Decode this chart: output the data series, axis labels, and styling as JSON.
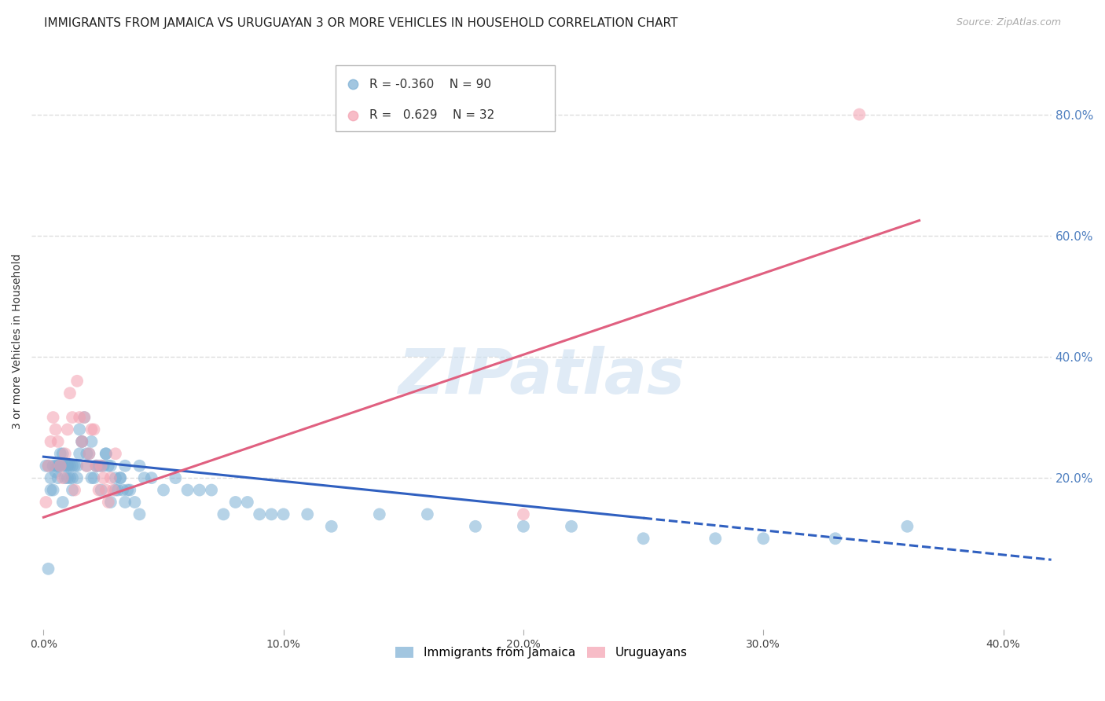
{
  "title": "IMMIGRANTS FROM JAMAICA VS URUGUAYAN 3 OR MORE VEHICLES IN HOUSEHOLD CORRELATION CHART",
  "source": "Source: ZipAtlas.com",
  "ylabel": "3 or more Vehicles in Household",
  "watermark": "ZIPatlas",
  "right_ytick_labels": [
    "80.0%",
    "60.0%",
    "40.0%",
    "20.0%"
  ],
  "right_yticks": [
    0.8,
    0.6,
    0.4,
    0.2
  ],
  "xlim": [
    -0.005,
    0.42
  ],
  "ylim": [
    -0.05,
    0.9
  ],
  "blue_R": -0.36,
  "blue_N": 90,
  "pink_R": 0.629,
  "pink_N": 32,
  "blue_color": "#7bafd4",
  "pink_color": "#f4a0b0",
  "blue_line_color": "#3060c0",
  "pink_line_color": "#e06080",
  "legend_label_blue": "Immigrants from Jamaica",
  "legend_label_pink": "Uruguayans",
  "right_tick_color": "#5080c0",
  "blue_scatter_x": [
    0.001,
    0.002,
    0.003,
    0.003,
    0.004,
    0.005,
    0.005,
    0.006,
    0.006,
    0.007,
    0.007,
    0.008,
    0.008,
    0.009,
    0.009,
    0.01,
    0.01,
    0.011,
    0.011,
    0.012,
    0.012,
    0.013,
    0.014,
    0.015,
    0.015,
    0.016,
    0.017,
    0.018,
    0.019,
    0.02,
    0.021,
    0.022,
    0.023,
    0.024,
    0.025,
    0.026,
    0.027,
    0.028,
    0.03,
    0.031,
    0.032,
    0.033,
    0.034,
    0.035,
    0.04,
    0.042,
    0.045,
    0.05,
    0.055,
    0.06,
    0.065,
    0.07,
    0.075,
    0.08,
    0.085,
    0.09,
    0.095,
    0.1,
    0.11,
    0.12,
    0.002,
    0.004,
    0.006,
    0.008,
    0.01,
    0.012,
    0.014,
    0.016,
    0.018,
    0.02,
    0.022,
    0.024,
    0.026,
    0.028,
    0.03,
    0.032,
    0.034,
    0.036,
    0.038,
    0.04,
    0.14,
    0.16,
    0.18,
    0.2,
    0.22,
    0.25,
    0.28,
    0.3,
    0.33,
    0.36
  ],
  "blue_scatter_y": [
    0.22,
    0.05,
    0.18,
    0.2,
    0.22,
    0.21,
    0.22,
    0.2,
    0.22,
    0.22,
    0.24,
    0.22,
    0.24,
    0.22,
    0.2,
    0.22,
    0.2,
    0.22,
    0.2,
    0.22,
    0.2,
    0.22,
    0.22,
    0.24,
    0.28,
    0.26,
    0.3,
    0.22,
    0.24,
    0.26,
    0.2,
    0.22,
    0.22,
    0.22,
    0.22,
    0.24,
    0.22,
    0.22,
    0.2,
    0.18,
    0.2,
    0.18,
    0.16,
    0.18,
    0.22,
    0.2,
    0.2,
    0.18,
    0.2,
    0.18,
    0.18,
    0.18,
    0.14,
    0.16,
    0.16,
    0.14,
    0.14,
    0.14,
    0.14,
    0.12,
    0.22,
    0.18,
    0.22,
    0.16,
    0.22,
    0.18,
    0.2,
    0.26,
    0.24,
    0.2,
    0.22,
    0.18,
    0.24,
    0.16,
    0.18,
    0.2,
    0.22,
    0.18,
    0.16,
    0.14,
    0.14,
    0.14,
    0.12,
    0.12,
    0.12,
    0.1,
    0.1,
    0.1,
    0.1,
    0.12
  ],
  "pink_scatter_x": [
    0.001,
    0.002,
    0.003,
    0.004,
    0.005,
    0.006,
    0.007,
    0.008,
    0.009,
    0.01,
    0.011,
    0.012,
    0.013,
    0.014,
    0.015,
    0.016,
    0.017,
    0.018,
    0.019,
    0.02,
    0.021,
    0.022,
    0.023,
    0.024,
    0.025,
    0.026,
    0.027,
    0.028,
    0.029,
    0.03,
    0.2,
    0.34
  ],
  "pink_scatter_y": [
    0.16,
    0.22,
    0.26,
    0.3,
    0.28,
    0.26,
    0.22,
    0.2,
    0.24,
    0.28,
    0.34,
    0.3,
    0.18,
    0.36,
    0.3,
    0.26,
    0.3,
    0.22,
    0.24,
    0.28,
    0.28,
    0.22,
    0.18,
    0.22,
    0.2,
    0.18,
    0.16,
    0.2,
    0.18,
    0.24,
    0.14,
    0.8
  ],
  "blue_trend_x0": 0.0,
  "blue_trend_x1": 0.42,
  "blue_trend_xdash": 0.25,
  "blue_trend_y0": 0.235,
  "blue_trend_y1": 0.065,
  "pink_trend_x0": 0.0,
  "pink_trend_x1": 0.365,
  "pink_trend_y0": 0.135,
  "pink_trend_y1": 0.625,
  "grid_color": "#dddddd",
  "background_color": "#ffffff",
  "fig_width": 14.06,
  "fig_height": 8.92,
  "dpi": 100
}
